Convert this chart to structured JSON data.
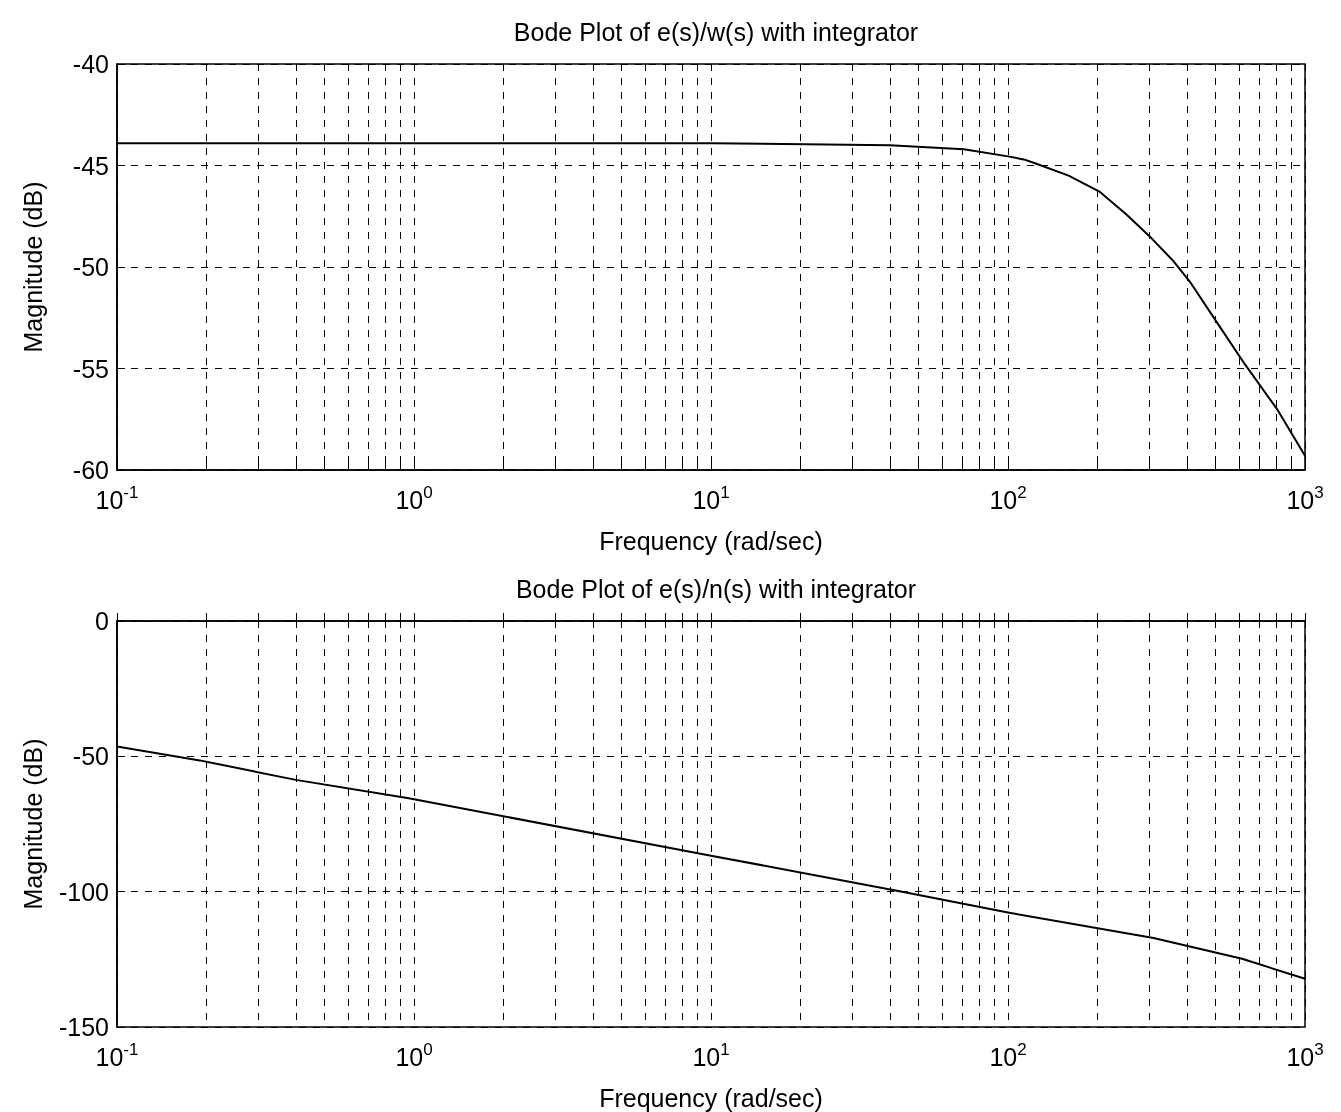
{
  "chart_data": [
    {
      "type": "line",
      "title": "Bode Plot of e(s)/w(s) with integrator",
      "xlabel": "Frequency (rad/sec)",
      "ylabel": "Magnitude (dB)",
      "log": "x",
      "grid": true,
      "marker": "none",
      "xlim": [
        0.1,
        1000
      ],
      "xticks": [
        {
          "value": 0.1,
          "label": "10$^{-1}$"
        },
        {
          "value": 0.2,
          "label": null
        },
        {
          "value": 0.3,
          "label": null
        },
        {
          "value": 0.4,
          "label": null
        },
        {
          "value": 0.5,
          "label": null
        },
        {
          "value": 0.6,
          "label": null
        },
        {
          "value": 0.7,
          "label": null
        },
        {
          "value": 0.8,
          "label": null
        },
        {
          "value": 0.9,
          "label": null
        },
        {
          "value": 1,
          "label": "10$^{0}$"
        },
        {
          "value": 2,
          "label": null
        },
        {
          "value": 3,
          "label": null
        },
        {
          "value": 4,
          "label": null
        },
        {
          "value": 5,
          "label": null
        },
        {
          "value": 6,
          "label": null
        },
        {
          "value": 7,
          "label": null
        },
        {
          "value": 8,
          "label": null
        },
        {
          "value": 9,
          "label": null
        },
        {
          "value": 10,
          "label": "10$^{1}$"
        },
        {
          "value": 20,
          "label": null
        },
        {
          "value": 30,
          "label": null
        },
        {
          "value": 40,
          "label": null
        },
        {
          "value": 50,
          "label": null
        },
        {
          "value": 60,
          "label": null
        },
        {
          "value": 70,
          "label": null
        },
        {
          "value": 80,
          "label": null
        },
        {
          "value": 90,
          "label": null
        },
        {
          "value": 100,
          "label": "10$^{2}$"
        },
        {
          "value": 200,
          "label": null
        },
        {
          "value": 300,
          "label": null
        },
        {
          "value": 400,
          "label": null
        },
        {
          "value": 500,
          "label": null
        },
        {
          "value": 600,
          "label": null
        },
        {
          "value": 700,
          "label": null
        },
        {
          "value": 800,
          "label": null
        },
        {
          "value": 900,
          "label": null
        },
        {
          "value": 1000,
          "label": "10$^{3}$"
        }
      ],
      "ylim": [
        -60,
        -40
      ],
      "yticks": [
        -60,
        -55,
        -50,
        -45,
        -40
      ],
      "series": [
        {
          "color": "#000000",
          "x": [
            0.1,
            1,
            4.2,
            10,
            40,
            71,
            100,
            113,
            124,
            160,
            204,
            250,
            305,
            360,
            413,
            509,
            628,
            805,
            1000
          ],
          "values": [
            -43.9,
            -43.9,
            -43.9,
            -43.9,
            -44.0,
            -44.2,
            -44.55,
            -44.7,
            -44.9,
            -45.5,
            -46.3,
            -47.4,
            -48.6,
            -49.7,
            -50.8,
            -52.8,
            -54.8,
            -57.0,
            -59.3
          ]
        }
      ]
    },
    {
      "type": "line",
      "title": "Bode Plot of e(s)/n(s) with integrator",
      "xlabel": "Frequency (rad/sec)",
      "ylabel": "Magnitude (dB)",
      "log": "x",
      "grid": true,
      "marker": "none",
      "xlim": [
        0.1,
        1000
      ],
      "xticks": [
        {
          "value": 0.1,
          "label": "10$^{-1}$"
        },
        {
          "value": 0.2,
          "label": null
        },
        {
          "value": 0.3,
          "label": null
        },
        {
          "value": 0.4,
          "label": null
        },
        {
          "value": 0.5,
          "label": null
        },
        {
          "value": 0.6,
          "label": null
        },
        {
          "value": 0.7,
          "label": null
        },
        {
          "value": 0.8,
          "label": null
        },
        {
          "value": 0.9,
          "label": null
        },
        {
          "value": 1,
          "label": "10$^{0}$"
        },
        {
          "value": 2,
          "label": null
        },
        {
          "value": 3,
          "label": null
        },
        {
          "value": 4,
          "label": null
        },
        {
          "value": 5,
          "label": null
        },
        {
          "value": 6,
          "label": null
        },
        {
          "value": 7,
          "label": null
        },
        {
          "value": 8,
          "label": null
        },
        {
          "value": 9,
          "label": null
        },
        {
          "value": 10,
          "label": "10$^{1}$"
        },
        {
          "value": 20,
          "label": null
        },
        {
          "value": 30,
          "label": null
        },
        {
          "value": 40,
          "label": null
        },
        {
          "value": 50,
          "label": null
        },
        {
          "value": 60,
          "label": null
        },
        {
          "value": 70,
          "label": null
        },
        {
          "value": 80,
          "label": null
        },
        {
          "value": 90,
          "label": null
        },
        {
          "value": 100,
          "label": "10$^{2}$"
        },
        {
          "value": 200,
          "label": null
        },
        {
          "value": 300,
          "label": null
        },
        {
          "value": 400,
          "label": null
        },
        {
          "value": 500,
          "label": null
        },
        {
          "value": 600,
          "label": null
        },
        {
          "value": 700,
          "label": null
        },
        {
          "value": 800,
          "label": null
        },
        {
          "value": 900,
          "label": null
        },
        {
          "value": 1000,
          "label": "10$^{3}$"
        }
      ],
      "ylim": [
        -150,
        0
      ],
      "yticks": [
        -150,
        -100,
        -50,
        0
      ],
      "series": [
        {
          "color": "#000000",
          "x": [
            0.1,
            0.19,
            0.4,
            0.96,
            9.9,
            44,
            100,
            309,
            614,
            1000
          ],
          "values": [
            -46.4,
            -51.5,
            -58.7,
            -65.5,
            -86.6,
            -100.0,
            -107.7,
            -117.1,
            -124.8,
            -132.2
          ]
        }
      ]
    }
  ]
}
